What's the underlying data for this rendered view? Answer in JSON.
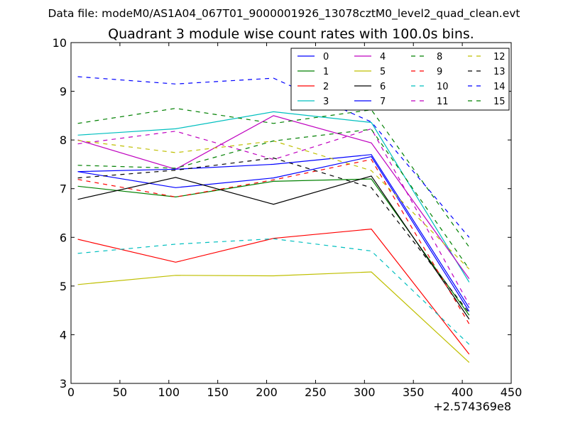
{
  "figure": {
    "suptitle": "Data file: modeM0/AS1A04_067T01_9000001926_13078cztM0_level2_quad_clean.evt"
  },
  "chart_data": {
    "type": "line",
    "title": "Quadrant 3 module wise count rates with 100.0s bins.",
    "xlabel": "",
    "ylabel": "",
    "x_offset_label": "+2.574369e8",
    "xlim": [
      0,
      450
    ],
    "ylim": [
      3,
      10
    ],
    "xticks": [
      0,
      50,
      100,
      150,
      200,
      250,
      300,
      350,
      400,
      450
    ],
    "yticks": [
      3,
      4,
      5,
      6,
      7,
      8,
      9,
      10
    ],
    "grid": false,
    "legend_position": "top-right",
    "legend_columns": 4,
    "x": [
      7,
      107,
      207,
      307,
      407
    ],
    "series": [
      {
        "name": "0",
        "color": "#0000ff",
        "style": "solid",
        "values": [
          7.35,
          7.02,
          7.22,
          7.66,
          4.48
        ]
      },
      {
        "name": "1",
        "color": "#008000",
        "style": "solid",
        "values": [
          7.05,
          6.83,
          7.15,
          7.2,
          4.4
        ]
      },
      {
        "name": "2",
        "color": "#ff0000",
        "style": "solid",
        "values": [
          5.96,
          5.49,
          5.98,
          6.17,
          3.6
        ]
      },
      {
        "name": "3",
        "color": "#00bfbf",
        "style": "solid",
        "values": [
          8.1,
          8.23,
          8.58,
          8.36,
          5.08
        ]
      },
      {
        "name": "4",
        "color": "#bf00bf",
        "style": "solid",
        "values": [
          8.0,
          7.4,
          8.5,
          7.94,
          5.15
        ]
      },
      {
        "name": "5",
        "color": "#bfbf00",
        "style": "solid",
        "values": [
          5.03,
          5.22,
          5.21,
          5.29,
          3.43
        ]
      },
      {
        "name": "6",
        "color": "#000000",
        "style": "solid",
        "values": [
          6.78,
          7.23,
          6.68,
          7.26,
          4.32
        ]
      },
      {
        "name": "7",
        "color": "#0000ff",
        "style": "solid",
        "values": [
          7.35,
          7.4,
          7.5,
          7.7,
          4.55
        ]
      },
      {
        "name": "8",
        "color": "#008000",
        "style": "dashed",
        "values": [
          8.34,
          8.65,
          8.34,
          8.62,
          5.8
        ]
      },
      {
        "name": "9",
        "color": "#ff0000",
        "style": "dashed",
        "values": [
          7.19,
          6.83,
          7.18,
          7.6,
          4.22
        ]
      },
      {
        "name": "10",
        "color": "#00bfbf",
        "style": "dashed",
        "values": [
          5.67,
          5.86,
          5.97,
          5.72,
          3.8
        ]
      },
      {
        "name": "11",
        "color": "#bf00bf",
        "style": "dashed",
        "values": [
          7.92,
          8.18,
          7.6,
          8.23,
          4.62
        ]
      },
      {
        "name": "12",
        "color": "#bfbf00",
        "style": "dashed",
        "values": [
          7.99,
          7.74,
          7.98,
          7.37,
          5.35
        ]
      },
      {
        "name": "13",
        "color": "#000000",
        "style": "dashed",
        "values": [
          7.22,
          7.38,
          7.63,
          7.02,
          4.45
        ]
      },
      {
        "name": "14",
        "color": "#0000ff",
        "style": "dashed",
        "values": [
          9.3,
          9.15,
          9.27,
          8.37,
          6.0
        ]
      },
      {
        "name": "15",
        "color": "#008000",
        "style": "dashed",
        "values": [
          7.48,
          7.42,
          7.98,
          8.22,
          5.35
        ]
      }
    ]
  }
}
